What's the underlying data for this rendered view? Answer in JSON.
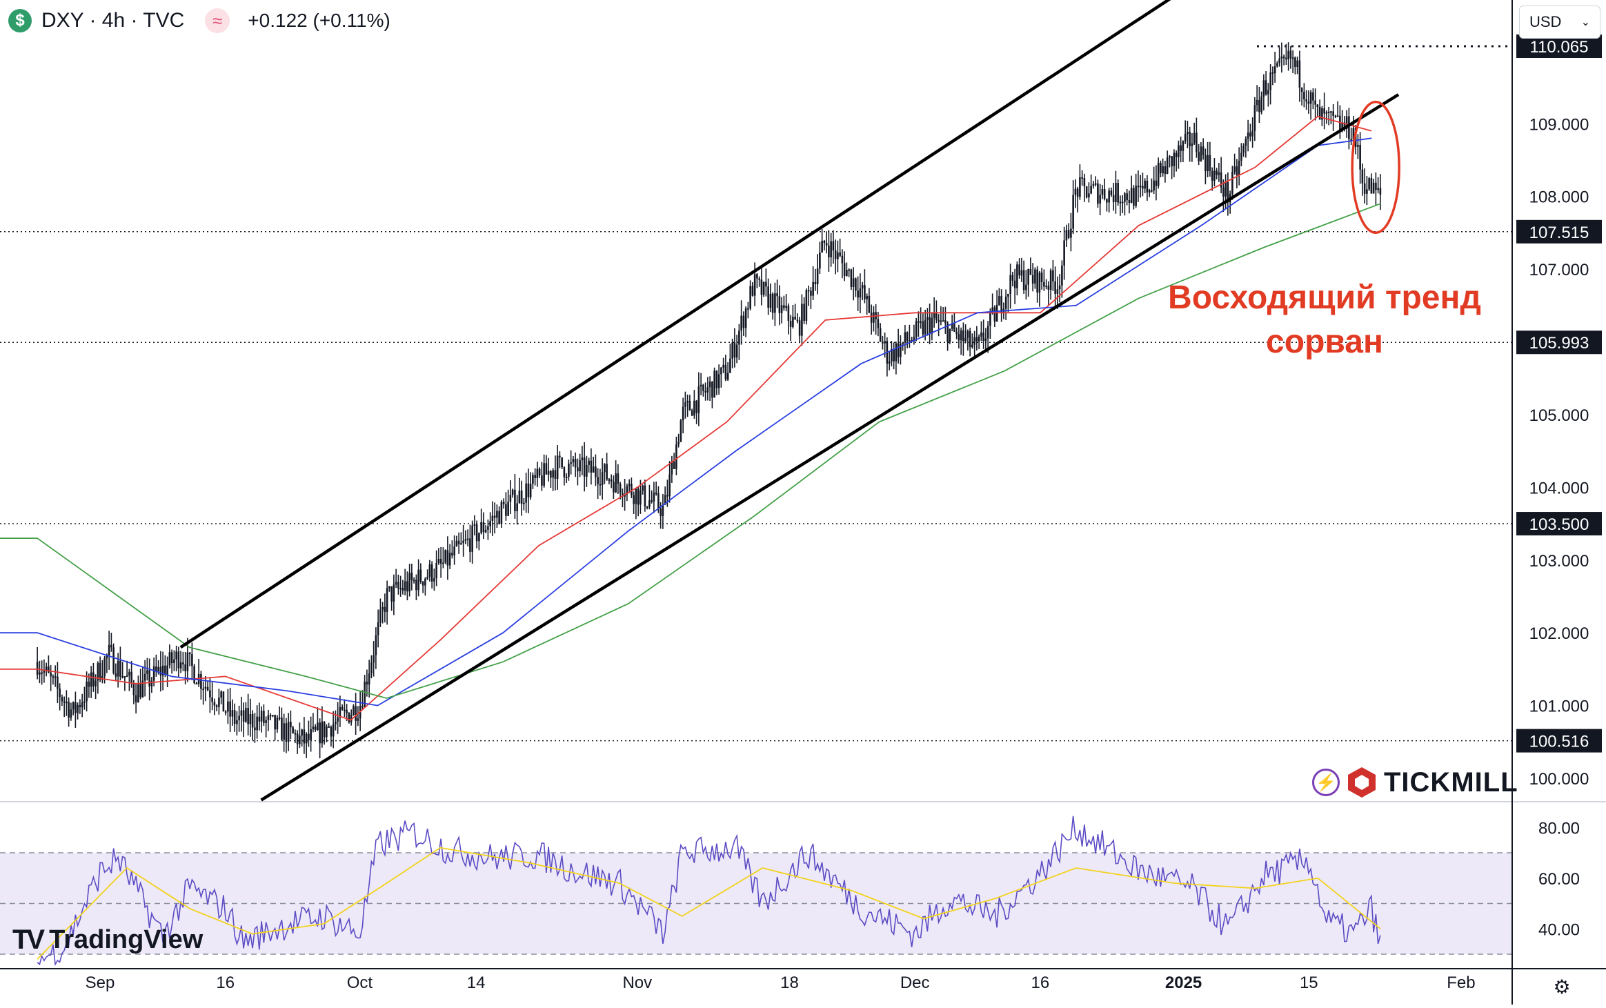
{
  "header": {
    "symbol_icon": "$",
    "title": "DXY · 4h · TVC",
    "indicator_icon": "≈",
    "change": "+0.122 (+0.11%)"
  },
  "currency_selector": {
    "value": "USD",
    "icon": "chevron-down-icon"
  },
  "annotation": {
    "line1": "Восходящий тренд",
    "line2": "сорван"
  },
  "logos": {
    "tradingview": "TradingView",
    "tickmill": "TICKMILL"
  },
  "colors": {
    "candle": "#131722",
    "ma_red": "#e53935",
    "ma_blue": "#2a3fe0",
    "ma_green": "#43a047",
    "rsi": "#5b4cc4",
    "rsi_ma": "#f2d21b",
    "rsi_band": "#ede9f8",
    "annotation": "#e23b24",
    "channel": "#000000"
  },
  "chart_data": [
    {
      "type": "candlestick",
      "title": "DXY · 4h · TVC",
      "x_ticks": [
        "Sep",
        "16",
        "Oct",
        "14",
        "Nov",
        "18",
        "Dec",
        "16",
        "2025",
        "15",
        "Feb"
      ],
      "y_ticks": [
        "110.065",
        "109.000",
        "108.000",
        "107.515",
        "107.000",
        "105.993",
        "105.000",
        "104.000",
        "103.500",
        "103.000",
        "102.000",
        "101.000",
        "100.516",
        "100.000"
      ],
      "ylim": [
        99.7,
        111.0
      ],
      "horizontal_levels": [
        110.065,
        107.515,
        105.993,
        103.5,
        100.516
      ],
      "anchor_closes": [
        {
          "date": "Aug 26",
          "value": 101.6
        },
        {
          "date": "Aug 30",
          "value": 100.9
        },
        {
          "date": "Sep 3",
          "value": 101.7
        },
        {
          "date": "Sep 6",
          "value": 101.2
        },
        {
          "date": "Sep 11",
          "value": 101.7
        },
        {
          "date": "Sep 17",
          "value": 100.8
        },
        {
          "date": "Sep 20",
          "value": 100.8
        },
        {
          "date": "Sep 25",
          "value": 100.5
        },
        {
          "date": "Oct 1",
          "value": 101.0
        },
        {
          "date": "Oct 4",
          "value": 102.5
        },
        {
          "date": "Oct 10",
          "value": 102.9
        },
        {
          "date": "Oct 17",
          "value": 103.7
        },
        {
          "date": "Oct 23",
          "value": 104.3
        },
        {
          "date": "Oct 28",
          "value": 104.2
        },
        {
          "date": "Nov 4",
          "value": 103.7
        },
        {
          "date": "Nov 6",
          "value": 105.0
        },
        {
          "date": "Nov 11",
          "value": 105.6
        },
        {
          "date": "Nov 14",
          "value": 106.8
        },
        {
          "date": "Nov 19",
          "value": 106.2
        },
        {
          "date": "Nov 22",
          "value": 107.4
        },
        {
          "date": "Nov 26",
          "value": 106.7
        },
        {
          "date": "Nov 29",
          "value": 105.8
        },
        {
          "date": "Dec 4",
          "value": 106.3
        },
        {
          "date": "Dec 9",
          "value": 105.9
        },
        {
          "date": "Dec 13",
          "value": 106.9
        },
        {
          "date": "Dec 18",
          "value": 106.8
        },
        {
          "date": "Dec 20",
          "value": 108.1
        },
        {
          "date": "Dec 27",
          "value": 108.0
        },
        {
          "date": "Jan 2",
          "value": 108.8
        },
        {
          "date": "Jan 6",
          "value": 108.0
        },
        {
          "date": "Jan 10",
          "value": 109.5
        },
        {
          "date": "Jan 13",
          "value": 109.9
        },
        {
          "date": "Jan 16",
          "value": 109.1
        },
        {
          "date": "Jan 20",
          "value": 108.9
        },
        {
          "date": "Jan 21",
          "value": 108.2
        },
        {
          "date": "Jan 23",
          "value": 108.0
        }
      ],
      "moving_averages": [
        {
          "color": "red",
          "values": [
            {
              "date": "Aug 26",
              "value": 101.5
            },
            {
              "date": "Sep 6",
              "value": 101.3
            },
            {
              "date": "Sep 16",
              "value": 101.4
            },
            {
              "date": "Sep 30",
              "value": 100.8
            },
            {
              "date": "Oct 10",
              "value": 101.9
            },
            {
              "date": "Oct 21",
              "value": 103.2
            },
            {
              "date": "Nov 1",
              "value": 104.0
            },
            {
              "date": "Nov 11",
              "value": 104.9
            },
            {
              "date": "Nov 22",
              "value": 106.3
            },
            {
              "date": "Dec 2",
              "value": 106.4
            },
            {
              "date": "Dec 16",
              "value": 106.4
            },
            {
              "date": "Dec 27",
              "value": 107.6
            },
            {
              "date": "Jan 9",
              "value": 108.4
            },
            {
              "date": "Jan 16",
              "value": 109.1
            },
            {
              "date": "Jan 22",
              "value": 108.9
            }
          ]
        },
        {
          "color": "blue",
          "values": [
            {
              "date": "Aug 26",
              "value": 102.0
            },
            {
              "date": "Sep 10",
              "value": 101.4
            },
            {
              "date": "Sep 23",
              "value": 101.2
            },
            {
              "date": "Oct 3",
              "value": 101.0
            },
            {
              "date": "Oct 17",
              "value": 102.0
            },
            {
              "date": "Oct 31",
              "value": 103.4
            },
            {
              "date": "Nov 12",
              "value": 104.5
            },
            {
              "date": "Nov 26",
              "value": 105.7
            },
            {
              "date": "Dec 9",
              "value": 106.4
            },
            {
              "date": "Dec 20",
              "value": 106.5
            },
            {
              "date": "Jan 3",
              "value": 107.6
            },
            {
              "date": "Jan 16",
              "value": 108.7
            },
            {
              "date": "Jan 22",
              "value": 108.8
            }
          ]
        },
        {
          "color": "green",
          "values": [
            {
              "date": "Aug 26",
              "value": 103.3
            },
            {
              "date": "Sep 12",
              "value": 101.8
            },
            {
              "date": "Sep 25",
              "value": 101.4
            },
            {
              "date": "Oct 4",
              "value": 101.1
            },
            {
              "date": "Oct 17",
              "value": 101.6
            },
            {
              "date": "Oct 31",
              "value": 102.4
            },
            {
              "date": "Nov 14",
              "value": 103.6
            },
            {
              "date": "Nov 28",
              "value": 104.9
            },
            {
              "date": "Dec 12",
              "value": 105.6
            },
            {
              "date": "Dec 27",
              "value": 106.6
            },
            {
              "date": "Jan 10",
              "value": 107.3
            },
            {
              "date": "Jan 23",
              "value": 107.9
            }
          ]
        }
      ],
      "trendlines": [
        {
          "type": "channel-upper",
          "from": {
            "date": "Sep 11",
            "value": 101.8
          },
          "to": {
            "date": "Jan 3",
            "value": 111.0
          }
        },
        {
          "type": "channel-lower",
          "from": {
            "date": "Sep 20",
            "value": 99.7
          },
          "to": {
            "date": "Jan 25",
            "value": 109.4
          }
        }
      ],
      "callout": {
        "shape": "ellipse",
        "date": "Jan 22",
        "range": [
          107.5,
          109.3
        ]
      }
    },
    {
      "type": "line",
      "title": "RSI",
      "y_ticks": [
        "80.00",
        "60.00",
        "40.00"
      ],
      "ylim": [
        25,
        90
      ],
      "band": [
        30,
        70
      ],
      "midline": 50,
      "rsi_values": [
        {
          "date": "Aug 26",
          "value": 27
        },
        {
          "date": "Aug 29",
          "value": 33
        },
        {
          "date": "Sep 2",
          "value": 62
        },
        {
          "date": "Sep 4",
          "value": 68
        },
        {
          "date": "Sep 9",
          "value": 37
        },
        {
          "date": "Sep 12",
          "value": 56
        },
        {
          "date": "Sep 16",
          "value": 48
        },
        {
          "date": "Sep 18",
          "value": 35
        },
        {
          "date": "Sep 23",
          "value": 42
        },
        {
          "date": "Sep 27",
          "value": 45
        },
        {
          "date": "Oct 1",
          "value": 38
        },
        {
          "date": "Oct 3",
          "value": 73
        },
        {
          "date": "Oct 7",
          "value": 78
        },
        {
          "date": "Oct 11",
          "value": 71
        },
        {
          "date": "Oct 16",
          "value": 68
        },
        {
          "date": "Oct 21",
          "value": 69
        },
        {
          "date": "Oct 25",
          "value": 63
        },
        {
          "date": "Oct 30",
          "value": 58
        },
        {
          "date": "Nov 4",
          "value": 38
        },
        {
          "date": "Nov 6",
          "value": 70
        },
        {
          "date": "Nov 12",
          "value": 72
        },
        {
          "date": "Nov 15",
          "value": 50
        },
        {
          "date": "Nov 20",
          "value": 70
        },
        {
          "date": "Nov 26",
          "value": 48
        },
        {
          "date": "Dec 2",
          "value": 38
        },
        {
          "date": "Dec 6",
          "value": 52
        },
        {
          "date": "Dec 11",
          "value": 45
        },
        {
          "date": "Dec 16",
          "value": 62
        },
        {
          "date": "Dec 20",
          "value": 80
        },
        {
          "date": "Dec 27",
          "value": 63
        },
        {
          "date": "Jan 2",
          "value": 56
        },
        {
          "date": "Jan 6",
          "value": 40
        },
        {
          "date": "Jan 10",
          "value": 61
        },
        {
          "date": "Jan 15",
          "value": 67
        },
        {
          "date": "Jan 17",
          "value": 43
        },
        {
          "date": "Jan 20",
          "value": 38
        },
        {
          "date": "Jan 22",
          "value": 48
        },
        {
          "date": "Jan 23",
          "value": 33
        }
      ],
      "rsi_ma_values": [
        {
          "date": "Aug 26",
          "value": 28
        },
        {
          "date": "Sep 5",
          "value": 64
        },
        {
          "date": "Sep 12",
          "value": 48
        },
        {
          "date": "Sep 19",
          "value": 38
        },
        {
          "date": "Sep 27",
          "value": 42
        },
        {
          "date": "Oct 4",
          "value": 58
        },
        {
          "date": "Oct 10",
          "value": 72
        },
        {
          "date": "Oct 20",
          "value": 66
        },
        {
          "date": "Oct 30",
          "value": 58
        },
        {
          "date": "Nov 6",
          "value": 45
        },
        {
          "date": "Nov 15",
          "value": 64
        },
        {
          "date": "Nov 25",
          "value": 55
        },
        {
          "date": "Dec 3",
          "value": 44
        },
        {
          "date": "Dec 11",
          "value": 52
        },
        {
          "date": "Dec 20",
          "value": 64
        },
        {
          "date": "Dec 31",
          "value": 58
        },
        {
          "date": "Jan 9",
          "value": 56
        },
        {
          "date": "Jan 16",
          "value": 60
        },
        {
          "date": "Jan 23",
          "value": 40
        }
      ]
    }
  ]
}
